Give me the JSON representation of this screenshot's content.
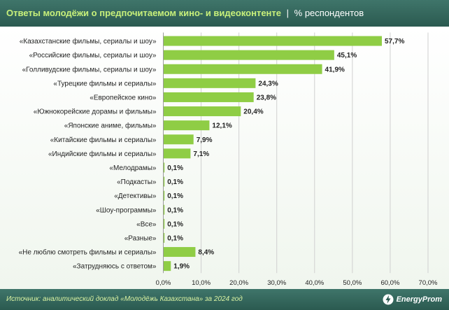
{
  "header": {
    "title": "Ответы молодёжи о предпочитаемом кино- и видеоконтенте",
    "separator": "|",
    "subtitle": "% респондентов"
  },
  "footer": {
    "source": "Источник: аналитический доклад «Молодёжь Казахстана» за 2024 год",
    "logo": "EnergyProm"
  },
  "colors": {
    "bar": "#8fcd45",
    "header_bg": "#356a5e",
    "title": "#c8f07a",
    "grid": "#d0d0d0"
  },
  "chart_data": {
    "type": "bar",
    "orientation": "horizontal",
    "title": "Ответы молодёжи о предпочитаемом кино- и видеоконтенте",
    "xlabel": "",
    "ylabel": "",
    "xlim": [
      0,
      70
    ],
    "ticks": [
      0,
      10,
      20,
      30,
      40,
      50,
      60,
      70
    ],
    "tick_labels": [
      "0,0%",
      "10,0%",
      "20,0%",
      "30,0%",
      "40,0%",
      "50,0%",
      "60,0%",
      "70,0%"
    ],
    "categories": [
      "«Казахстанские фильмы, сериалы и шоу»",
      "«Российские фильмы, сериалы и шоу»",
      "«Голливудские фильмы, сериалы и шоу»",
      "«Турецкие фильмы и сериалы»",
      "«Европейское кино»",
      "«Южнокорейские дорамы и фильмы»",
      "«Японские аниме, фильмы»",
      "«Китайские фильмы и сериалы»",
      "«Индийские фильмы и сериалы»",
      "«Мелодрамы»",
      "«Подкасты»",
      "«Детективы»",
      "«Шоу-программы»",
      "«Все»",
      "«Разные»",
      "«Не люблю смотреть фильмы и сериалы»",
      "«Затрудняюсь с ответом»"
    ],
    "values": [
      57.7,
      45.1,
      41.9,
      24.3,
      23.8,
      20.4,
      12.1,
      7.9,
      7.1,
      0.1,
      0.1,
      0.1,
      0.1,
      0.1,
      0.1,
      8.4,
      1.9
    ],
    "value_labels": [
      "57,7%",
      "45,1%",
      "41,9%",
      "24,3%",
      "23,8%",
      "20,4%",
      "12,1%",
      "7,9%",
      "7,1%",
      "0,1%",
      "0,1%",
      "0,1%",
      "0,1%",
      "0,1%",
      "0,1%",
      "8,4%",
      "1,9%"
    ],
    "grid": true
  }
}
